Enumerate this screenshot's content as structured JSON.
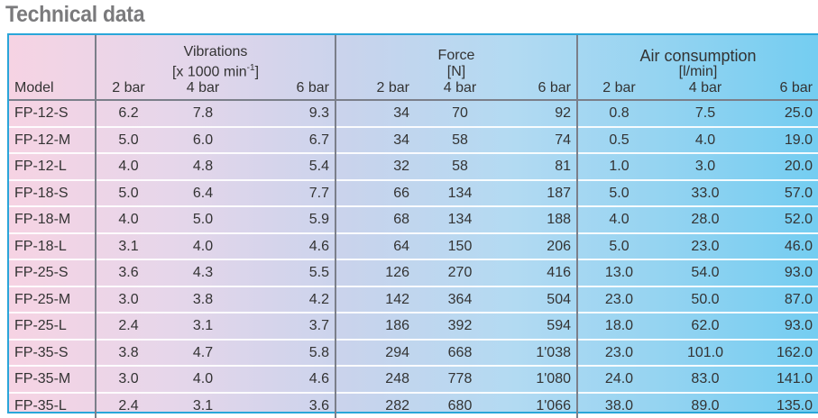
{
  "title": "Technical data",
  "groups": {
    "vibrations": {
      "label": "Vibrations",
      "unit": "[x 1000 min",
      "unit_sup": "-1",
      "unit_end": "]"
    },
    "force": {
      "label": "Force",
      "unit": "[N]"
    },
    "air": {
      "label": "Air consumption",
      "unit": "[l/min]"
    }
  },
  "model_header": "Model",
  "pressures": [
    "2 bar",
    "4 bar",
    "6 bar"
  ],
  "rows": [
    [
      "FP-12-S",
      "6.2",
      "7.8",
      "9.3",
      "34",
      "70",
      "92",
      "0.8",
      "7.5",
      "25.0"
    ],
    [
      "FP-12-M",
      "5.0",
      "6.0",
      "6.7",
      "34",
      "58",
      "74",
      "0.5",
      "4.0",
      "19.0"
    ],
    [
      "FP-12-L",
      "4.0",
      "4.8",
      "5.4",
      "32",
      "58",
      "81",
      "1.0",
      "3.0",
      "20.0"
    ],
    [
      "FP-18-S",
      "5.0",
      "6.4",
      "7.7",
      "66",
      "134",
      "187",
      "5.0",
      "33.0",
      "57.0"
    ],
    [
      "FP-18-M",
      "4.0",
      "5.0",
      "5.9",
      "68",
      "134",
      "188",
      "4.0",
      "28.0",
      "52.0"
    ],
    [
      "FP-18-L",
      "3.1",
      "4.0",
      "4.6",
      "64",
      "150",
      "206",
      "5.0",
      "23.0",
      "46.0"
    ],
    [
      "FP-25-S",
      "3.6",
      "4.3",
      "5.5",
      "126",
      "270",
      "416",
      "13.0",
      "54.0",
      "93.0"
    ],
    [
      "FP-25-M",
      "3.0",
      "3.8",
      "4.2",
      "142",
      "364",
      "504",
      "23.0",
      "50.0",
      "87.0"
    ],
    [
      "FP-25-L",
      "2.4",
      "3.1",
      "3.7",
      "186",
      "392",
      "594",
      "18.0",
      "62.0",
      "93.0"
    ],
    [
      "FP-35-S",
      "3.8",
      "4.7",
      "5.8",
      "294",
      "668",
      "1'038",
      "23.0",
      "101.0",
      "162.0"
    ],
    [
      "FP-35-M",
      "3.0",
      "4.0",
      "4.6",
      "248",
      "778",
      "1'080",
      "24.0",
      "83.0",
      "141.0"
    ],
    [
      "FP-35-L",
      "2.4",
      "3.1",
      "3.6",
      "282",
      "680",
      "1'066",
      "38.0",
      "89.0",
      "135.0"
    ]
  ]
}
